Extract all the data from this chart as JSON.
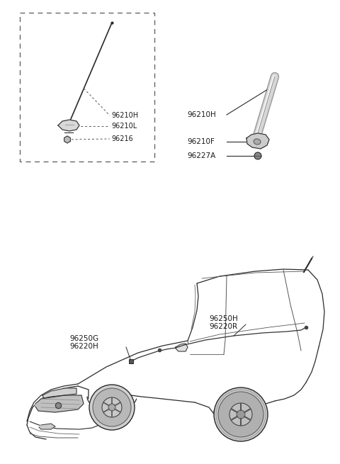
{
  "bg_color": "#ffffff",
  "fig_width": 4.8,
  "fig_height": 6.55,
  "dpi": 100,
  "box1_labels": [
    "96210H",
    "96210L",
    "96216"
  ],
  "box2_labels": [
    "96210H",
    "96210F",
    "96227A"
  ],
  "car_labels_top": [
    "96250H",
    "96220R"
  ],
  "car_labels_bottom": [
    "96250G",
    "96220H"
  ],
  "line_color": "#2a2a2a",
  "label_color": "#1a1a1a",
  "dash_color": "#555555"
}
